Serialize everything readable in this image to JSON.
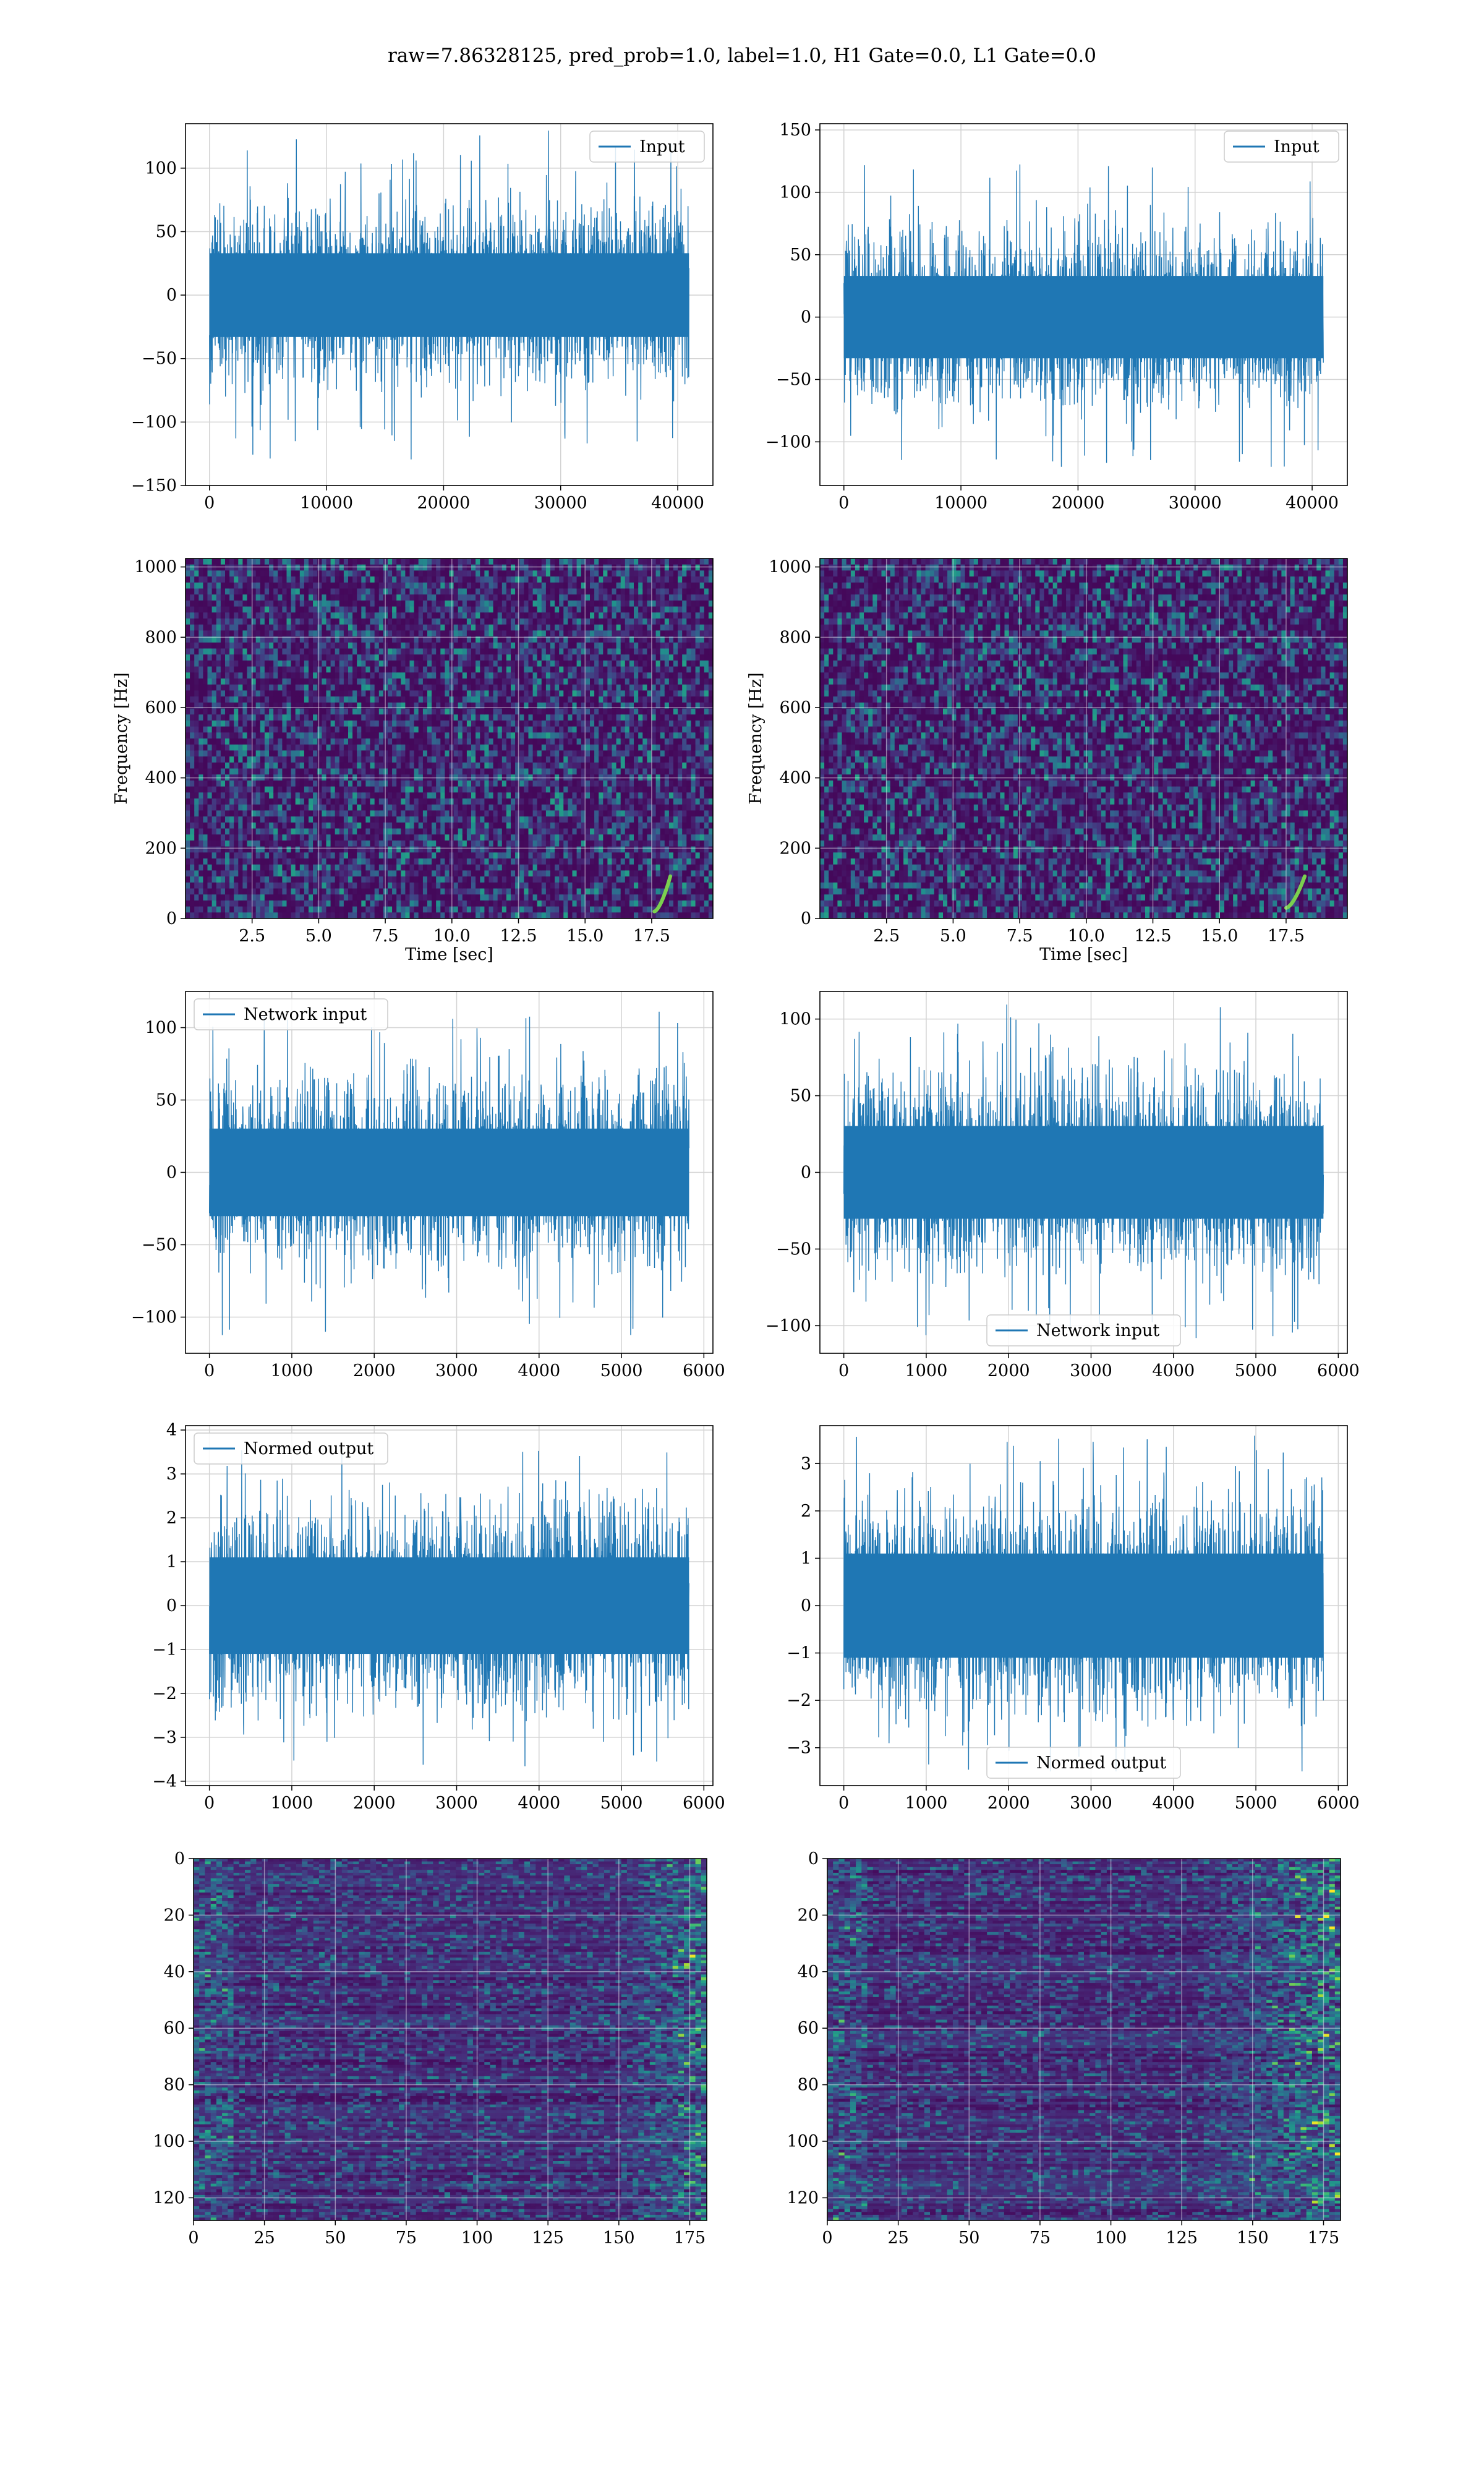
{
  "figure": {
    "title": "raw=7.86328125, pred_prob=1.0, label=1.0, H1 Gate=0.0, L1 Gate=0.0"
  },
  "colors": {
    "line": "#1f77b4",
    "grid": "#d3d3d3",
    "spines": "#000000",
    "viridis": [
      "#440154",
      "#472c7a",
      "#3b518b",
      "#2c718e",
      "#21908d",
      "#27ad81",
      "#5cc863",
      "#aadc32",
      "#fde725"
    ]
  },
  "chart_data": [
    {
      "id": "input-h1",
      "type": "line",
      "legend": "Input",
      "legend_loc": "upper right",
      "x_range": [
        0,
        40960
      ],
      "xlim": [
        -2048,
        43008
      ],
      "ylim": [
        -150,
        135
      ],
      "xticks": [
        0,
        10000,
        20000,
        30000,
        40000
      ],
      "xtick_labels": [
        "0",
        "10000",
        "20000",
        "30000",
        "40000"
      ],
      "yticks": [
        -150,
        -100,
        -50,
        0,
        50,
        100
      ],
      "ytick_labels": [
        "−150",
        "−100",
        "−50",
        "0",
        "50",
        "100"
      ],
      "xlabel": "",
      "ylabel": "",
      "grid": true,
      "signal": {
        "typical_amplitude": 60,
        "max_peak": 130,
        "min_peak": -138
      }
    },
    {
      "id": "input-l1",
      "type": "line",
      "legend": "Input",
      "legend_loc": "upper right",
      "x_range": [
        0,
        40960
      ],
      "xlim": [
        -2048,
        43008
      ],
      "ylim": [
        -135,
        155
      ],
      "xticks": [
        0,
        10000,
        20000,
        30000,
        40000
      ],
      "xtick_labels": [
        "0",
        "10000",
        "20000",
        "30000",
        "40000"
      ],
      "yticks": [
        -100,
        -50,
        0,
        50,
        100,
        150
      ],
      "ytick_labels": [
        "−100",
        "−50",
        "0",
        "50",
        "100",
        "150"
      ],
      "xlabel": "",
      "ylabel": "",
      "grid": true,
      "signal": {
        "typical_amplitude": 60,
        "max_peak": 125,
        "min_peak": -120
      }
    },
    {
      "id": "spec-h1",
      "type": "heatmap",
      "xlim": [
        0,
        19.8
      ],
      "ylim": [
        0,
        1024
      ],
      "xticks": [
        2.5,
        5.0,
        7.5,
        10.0,
        12.5,
        15.0,
        17.5
      ],
      "xtick_labels": [
        "2.5",
        "5.0",
        "7.5",
        "10.0",
        "12.5",
        "15.0",
        "17.5"
      ],
      "yticks": [
        0,
        200,
        400,
        600,
        800,
        1000
      ],
      "ytick_labels": [
        "0",
        "200",
        "400",
        "600",
        "800",
        "1000"
      ],
      "xlabel": "Time [sec]",
      "ylabel": "Frequency [Hz]",
      "grid": true,
      "chirp": {
        "t_start": 17.6,
        "t_end": 18.2,
        "f_start": 20,
        "f_end": 120
      }
    },
    {
      "id": "spec-l1",
      "type": "heatmap",
      "xlim": [
        0,
        19.8
      ],
      "ylim": [
        0,
        1024
      ],
      "xticks": [
        2.5,
        5.0,
        7.5,
        10.0,
        12.5,
        15.0,
        17.5
      ],
      "xtick_labels": [
        "2.5",
        "5.0",
        "7.5",
        "10.0",
        "12.5",
        "15.0",
        "17.5"
      ],
      "yticks": [
        0,
        200,
        400,
        600,
        800,
        1000
      ],
      "ytick_labels": [
        "0",
        "200",
        "400",
        "600",
        "800",
        "1000"
      ],
      "xlabel": "Time [sec]",
      "ylabel": "Frequency [Hz]",
      "grid": true,
      "chirp": {
        "t_start": 17.5,
        "t_end": 18.2,
        "f_start": 30,
        "f_end": 120
      }
    },
    {
      "id": "network-input-h1",
      "type": "line",
      "legend": "Network input",
      "legend_loc": "upper left",
      "x_range": [
        0,
        5820
      ],
      "xlim": [
        -290,
        6110
      ],
      "ylim": [
        -125,
        125
      ],
      "xticks": [
        0,
        1000,
        2000,
        3000,
        4000,
        5000,
        6000
      ],
      "xtick_labels": [
        "0",
        "1000",
        "2000",
        "3000",
        "4000",
        "5000",
        "6000"
      ],
      "yticks": [
        -100,
        -50,
        0,
        50,
        100
      ],
      "ytick_labels": [
        "−100",
        "−50",
        "0",
        "50",
        "100"
      ],
      "xlabel": "",
      "ylabel": "",
      "grid": true,
      "signal": {
        "typical_amplitude": 55,
        "max_peak": 113,
        "min_peak": -115
      }
    },
    {
      "id": "network-input-l1",
      "type": "line",
      "legend": "Network input",
      "legend_loc": "lower center",
      "x_range": [
        0,
        5820
      ],
      "xlim": [
        -290,
        6110
      ],
      "ylim": [
        -118,
        118
      ],
      "xticks": [
        0,
        1000,
        2000,
        3000,
        4000,
        5000,
        6000
      ],
      "xtick_labels": [
        "0",
        "1000",
        "2000",
        "3000",
        "4000",
        "5000",
        "6000"
      ],
      "yticks": [
        -100,
        -50,
        0,
        50,
        100
      ],
      "ytick_labels": [
        "−100",
        "−50",
        "0",
        "50",
        "100"
      ],
      "xlabel": "",
      "ylabel": "",
      "grid": true,
      "signal": {
        "typical_amplitude": 55,
        "max_peak": 110,
        "min_peak": -108
      }
    },
    {
      "id": "normed-output-h1",
      "type": "line",
      "legend": "Normed output",
      "legend_loc": "upper left",
      "x_range": [
        0,
        5820
      ],
      "xlim": [
        -290,
        6110
      ],
      "ylim": [
        -4.1,
        4.1
      ],
      "xticks": [
        0,
        1000,
        2000,
        3000,
        4000,
        5000,
        6000
      ],
      "xtick_labels": [
        "0",
        "1000",
        "2000",
        "3000",
        "4000",
        "5000",
        "6000"
      ],
      "yticks": [
        -4,
        -3,
        -2,
        -1,
        0,
        1,
        2,
        3,
        4
      ],
      "ytick_labels": [
        "−4",
        "−3",
        "−2",
        "−1",
        "0",
        "1",
        "2",
        "3",
        "4"
      ],
      "xlabel": "",
      "ylabel": "",
      "grid": true,
      "signal": {
        "typical_amplitude": 2,
        "max_peak": 3.7,
        "min_peak": -3.7
      }
    },
    {
      "id": "normed-output-l1",
      "type": "line",
      "legend": "Normed output",
      "legend_loc": "lower center",
      "x_range": [
        0,
        5820
      ],
      "xlim": [
        -290,
        6110
      ],
      "ylim": [
        -3.8,
        3.8
      ],
      "xticks": [
        0,
        1000,
        2000,
        3000,
        4000,
        5000,
        6000
      ],
      "xtick_labels": [
        "0",
        "1000",
        "2000",
        "3000",
        "4000",
        "5000",
        "6000"
      ],
      "yticks": [
        -3,
        -2,
        -1,
        0,
        1,
        2,
        3
      ],
      "ytick_labels": [
        "−3",
        "−2",
        "−1",
        "0",
        "1",
        "2",
        "3"
      ],
      "xlabel": "",
      "ylabel": "",
      "grid": true,
      "signal": {
        "typical_amplitude": 2,
        "max_peak": 3.6,
        "min_peak": -3.5
      }
    },
    {
      "id": "feature-map-h1",
      "type": "heatmap",
      "xlim": [
        0,
        181
      ],
      "ylim": [
        128,
        0
      ],
      "xticks": [
        0,
        25,
        50,
        75,
        100,
        125,
        150,
        175
      ],
      "xtick_labels": [
        "0",
        "25",
        "50",
        "75",
        "100",
        "125",
        "150",
        "175"
      ],
      "yticks": [
        0,
        20,
        40,
        60,
        80,
        100,
        120
      ],
      "ytick_labels": [
        "0",
        "20",
        "40",
        "60",
        "80",
        "100",
        "120"
      ],
      "xlabel": "",
      "ylabel": "",
      "grid": true,
      "bright_column_range": [
        150,
        181
      ]
    },
    {
      "id": "feature-map-l1",
      "type": "heatmap",
      "xlim": [
        0,
        181
      ],
      "ylim": [
        128,
        0
      ],
      "xticks": [
        0,
        25,
        50,
        75,
        100,
        125,
        150,
        175
      ],
      "xtick_labels": [
        "0",
        "25",
        "50",
        "75",
        "100",
        "125",
        "150",
        "175"
      ],
      "yticks": [
        0,
        20,
        40,
        60,
        80,
        100,
        120
      ],
      "ytick_labels": [
        "0",
        "20",
        "40",
        "60",
        "80",
        "100",
        "120"
      ],
      "xlabel": "",
      "ylabel": "",
      "grid": true,
      "bright_column_range": [
        130,
        181
      ]
    }
  ]
}
